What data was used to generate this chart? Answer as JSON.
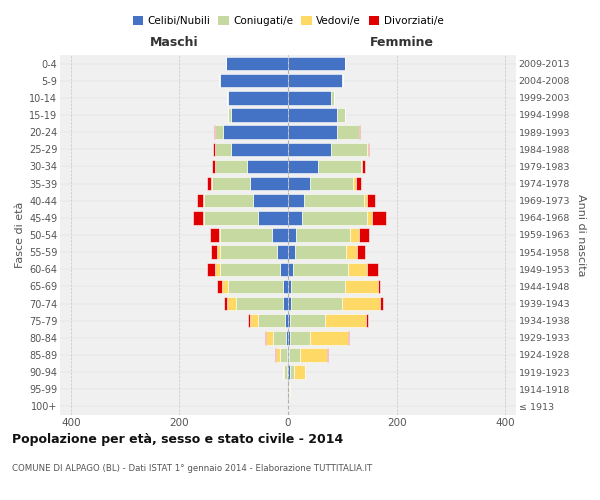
{
  "age_groups": [
    "100+",
    "95-99",
    "90-94",
    "85-89",
    "80-84",
    "75-79",
    "70-74",
    "65-69",
    "60-64",
    "55-59",
    "50-54",
    "45-49",
    "40-44",
    "35-39",
    "30-34",
    "25-29",
    "20-24",
    "15-19",
    "10-14",
    "5-9",
    "0-4"
  ],
  "birth_years": [
    "≤ 1913",
    "1914-1918",
    "1919-1923",
    "1924-1928",
    "1929-1933",
    "1934-1938",
    "1939-1943",
    "1944-1948",
    "1949-1953",
    "1954-1958",
    "1959-1963",
    "1964-1968",
    "1969-1973",
    "1974-1978",
    "1979-1983",
    "1984-1988",
    "1989-1993",
    "1994-1998",
    "1999-2003",
    "2004-2008",
    "2009-2013"
  ],
  "maschi": {
    "celibi": [
      0,
      0,
      2,
      2,
      3,
      5,
      10,
      10,
      15,
      20,
      30,
      55,
      65,
      70,
      75,
      105,
      120,
      105,
      110,
      125,
      115
    ],
    "coniugati": [
      0,
      0,
      5,
      12,
      25,
      50,
      85,
      100,
      110,
      105,
      95,
      100,
      90,
      70,
      60,
      30,
      15,
      5,
      2,
      2,
      0
    ],
    "vedovi": [
      0,
      0,
      3,
      8,
      12,
      15,
      18,
      12,
      10,
      5,
      3,
      2,
      2,
      2,
      0,
      0,
      0,
      0,
      0,
      0,
      0
    ],
    "divorziati": [
      0,
      0,
      0,
      2,
      2,
      3,
      5,
      8,
      15,
      12,
      15,
      18,
      10,
      8,
      5,
      3,
      2,
      0,
      0,
      0,
      0
    ]
  },
  "femmine": {
    "nubili": [
      0,
      2,
      3,
      2,
      3,
      4,
      5,
      5,
      10,
      12,
      15,
      25,
      30,
      40,
      55,
      80,
      90,
      90,
      80,
      100,
      105
    ],
    "coniugate": [
      0,
      0,
      8,
      20,
      38,
      65,
      95,
      100,
      100,
      95,
      100,
      120,
      110,
      80,
      80,
      65,
      40,
      15,
      5,
      2,
      0
    ],
    "vedove": [
      0,
      2,
      20,
      50,
      70,
      75,
      70,
      60,
      35,
      20,
      15,
      10,
      5,
      5,
      2,
      2,
      0,
      0,
      0,
      0,
      0
    ],
    "divorziate": [
      0,
      0,
      0,
      2,
      2,
      3,
      5,
      5,
      20,
      15,
      20,
      25,
      15,
      10,
      5,
      3,
      2,
      0,
      0,
      0,
      0
    ]
  },
  "colors": {
    "celibi": "#4472C4",
    "coniugati": "#C5D9A0",
    "vedovi": "#FFD966",
    "divorziati": "#E00000"
  },
  "xlim": 420,
  "title": "Popolazione per età, sesso e stato civile - 2014",
  "subtitle": "COMUNE DI ALPAGO (BL) - Dati ISTAT 1° gennaio 2014 - Elaborazione TUTTITALIA.IT",
  "xlabel_maschi": "Maschi",
  "xlabel_femmine": "Femmine",
  "ylabel": "Fasce di età",
  "ylabel_right": "Anni di nascita",
  "legend_labels": [
    "Celibi/Nubili",
    "Coniugati/e",
    "Vedovi/e",
    "Divorziati/e"
  ],
  "bg_color": "#FFFFFF",
  "plot_bg_color": "#F0F0F0"
}
